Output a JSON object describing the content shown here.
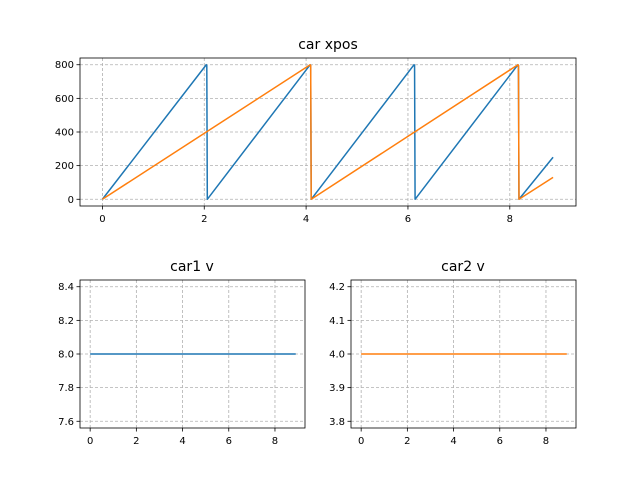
{
  "chart_data": [
    {
      "type": "line",
      "title": "car xpos",
      "xlabel": "",
      "ylabel": "",
      "xlim": [
        -0.44,
        9.3
      ],
      "ylim": [
        -40,
        840
      ],
      "xticks": [
        0,
        2,
        4,
        6,
        8
      ],
      "yticks": [
        0,
        200,
        400,
        600,
        800
      ],
      "grid": true,
      "series": [
        {
          "color": "#1f77b4",
          "x": [
            0,
            2.04,
            2.05,
            2.06,
            4.08,
            4.09,
            4.1,
            6.12,
            6.13,
            6.14,
            8.16,
            8.17,
            8.18,
            8.85
          ],
          "y": [
            0,
            800,
            795,
            0,
            800,
            795,
            0,
            800,
            795,
            0,
            800,
            795,
            0,
            250
          ]
        },
        {
          "color": "#ff7f0e",
          "x": [
            0,
            4.08,
            4.09,
            4.1,
            8.16,
            8.17,
            8.18,
            8.85
          ],
          "y": [
            0,
            800,
            795,
            0,
            800,
            795,
            0,
            130
          ]
        }
      ]
    },
    {
      "type": "line",
      "title": "car1 v",
      "xlabel": "",
      "ylabel": "",
      "xlim": [
        -0.44,
        9.3
      ],
      "ylim": [
        7.56,
        8.44
      ],
      "xticks": [
        0,
        2,
        4,
        6,
        8
      ],
      "yticks": [
        7.6,
        7.8,
        8.0,
        8.2,
        8.4
      ],
      "ytick_labels": [
        "7.6",
        "7.8",
        "8.0",
        "8.2",
        "8.4"
      ],
      "grid": true,
      "series": [
        {
          "color": "#1f77b4",
          "x": [
            0,
            8.9
          ],
          "y": [
            8.0,
            8.0
          ]
        }
      ]
    },
    {
      "type": "line",
      "title": "car2 v",
      "xlabel": "",
      "ylabel": "",
      "xlim": [
        -0.44,
        9.3
      ],
      "ylim": [
        3.78,
        4.22
      ],
      "xticks": [
        0,
        2,
        4,
        6,
        8
      ],
      "yticks": [
        3.8,
        3.9,
        4.0,
        4.1,
        4.2
      ],
      "ytick_labels": [
        "3.8",
        "3.9",
        "4.0",
        "4.1",
        "4.2"
      ],
      "grid": true,
      "series": [
        {
          "color": "#ff7f0e",
          "x": [
            0,
            8.9
          ],
          "y": [
            4.0,
            4.0
          ]
        }
      ]
    }
  ]
}
